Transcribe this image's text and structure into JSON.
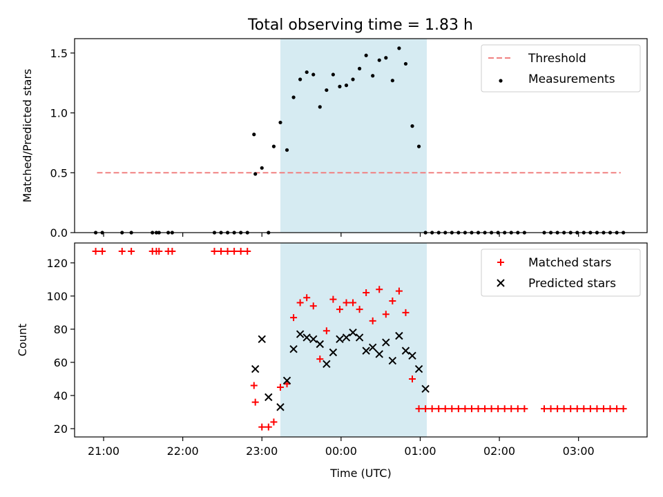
{
  "figure": {
    "title": "Total observing time = 1.83 h"
  },
  "chart_data": [
    {
      "type": "scatter",
      "panel": "top",
      "ylabel": "Matched/Predicted stars",
      "xlabel": "",
      "xlim": [
        "20:38",
        "03:52"
      ],
      "ylim": [
        0,
        1.62
      ],
      "yticks": [
        "0.0",
        "0.5",
        "1.0",
        "1.5"
      ],
      "shaded_interval": [
        "23:14",
        "01:05"
      ],
      "shade_color": "#add8e6",
      "legend_position": "top-right",
      "series": [
        {
          "name": "Threshold",
          "style": "dashed-line",
          "color": "#f08080",
          "x": [
            "20:55",
            "03:32"
          ],
          "y": [
            0.5,
            0.5
          ]
        },
        {
          "name": "Measurements",
          "style": "dot",
          "color": "#000000",
          "x": [
            "20:54",
            "20:59",
            "21:14",
            "21:21",
            "21:37",
            "21:40",
            "21:42",
            "21:49",
            "21:52",
            "22:24",
            "22:29",
            "22:34",
            "22:39",
            "22:44",
            "22:49",
            "22:54",
            "22:55",
            "23:00",
            "23:05",
            "23:09",
            "23:14",
            "23:19",
            "23:24",
            "23:29",
            "23:34",
            "23:39",
            "23:44",
            "23:49",
            "23:54",
            "23:59",
            "00:04",
            "00:09",
            "00:14",
            "00:19",
            "00:24",
            "00:29",
            "00:34",
            "00:39",
            "00:44",
            "00:49",
            "00:54",
            "00:59",
            "01:04",
            "01:09",
            "01:14",
            "01:19",
            "01:24",
            "01:29",
            "01:34",
            "01:39",
            "01:44",
            "01:49",
            "01:54",
            "01:59",
            "02:04",
            "02:09",
            "02:14",
            "02:19",
            "02:34",
            "02:39",
            "02:44",
            "02:49",
            "02:54",
            "02:59",
            "03:04",
            "03:09",
            "03:14",
            "03:19",
            "03:24",
            "03:29",
            "03:34"
          ],
          "y": [
            0,
            0,
            0,
            0,
            0,
            0,
            0,
            0,
            0,
            0,
            0,
            0,
            0,
            0,
            0,
            0.82,
            0.49,
            0.54,
            0,
            0.72,
            0.92,
            0.69,
            1.13,
            1.28,
            1.34,
            1.32,
            1.05,
            1.19,
            1.32,
            1.22,
            1.23,
            1.28,
            1.37,
            1.48,
            1.31,
            1.44,
            1.46,
            1.27,
            1.54,
            1.41,
            0.89,
            0.72,
            0,
            0,
            0,
            0,
            0,
            0,
            0,
            0,
            0,
            0,
            0,
            0,
            0,
            0,
            0,
            0,
            0,
            0,
            0,
            0,
            0,
            0,
            0,
            0,
            0,
            0,
            0,
            0,
            0
          ]
        }
      ]
    },
    {
      "type": "scatter",
      "panel": "bottom",
      "xlabel": "Time (UTC)",
      "ylabel": "Count",
      "xlim": [
        "20:38",
        "03:52"
      ],
      "ylim": [
        15,
        132
      ],
      "xticks": [
        "21:00",
        "22:00",
        "23:00",
        "00:00",
        "01:00",
        "02:00",
        "03:00"
      ],
      "yticks": [
        "20",
        "40",
        "60",
        "80",
        "100",
        "120"
      ],
      "shaded_interval": [
        "23:14",
        "01:05"
      ],
      "shade_color": "#add8e6",
      "legend_position": "top-right",
      "series": [
        {
          "name": "Matched stars",
          "marker": "plus",
          "color": "#ff0000",
          "x": [
            "20:54",
            "20:59",
            "21:14",
            "21:21",
            "21:37",
            "21:40",
            "21:42",
            "21:49",
            "21:52",
            "22:24",
            "22:29",
            "22:34",
            "22:39",
            "22:44",
            "22:49",
            "22:54",
            "22:55",
            "23:00",
            "23:05",
            "23:09",
            "23:14",
            "23:19",
            "23:24",
            "23:29",
            "23:34",
            "23:39",
            "23:44",
            "23:49",
            "23:54",
            "23:59",
            "00:04",
            "00:09",
            "00:14",
            "00:19",
            "00:24",
            "00:29",
            "00:34",
            "00:39",
            "00:44",
            "00:49",
            "00:54",
            "00:59",
            "01:04",
            "01:09",
            "01:14",
            "01:19",
            "01:24",
            "01:29",
            "01:34",
            "01:39",
            "01:44",
            "01:49",
            "01:54",
            "01:59",
            "02:04",
            "02:09",
            "02:14",
            "02:19",
            "02:34",
            "02:39",
            "02:44",
            "02:49",
            "02:54",
            "02:59",
            "03:04",
            "03:09",
            "03:14",
            "03:19",
            "03:24",
            "03:29",
            "03:34"
          ],
          "y": [
            127,
            127,
            127,
            127,
            127,
            127,
            127,
            127,
            127,
            127,
            127,
            127,
            127,
            127,
            127,
            46,
            36,
            21,
            21,
            24,
            45,
            47,
            87,
            96,
            99,
            94,
            62,
            79,
            98,
            92,
            96,
            96,
            92,
            102,
            85,
            104,
            89,
            97,
            103,
            90,
            50,
            32,
            32,
            32,
            32,
            32,
            32,
            32,
            32,
            32,
            32,
            32,
            32,
            32,
            32,
            32,
            32,
            32,
            32,
            32,
            32,
            32,
            32,
            32,
            32,
            32,
            32,
            32,
            32,
            32,
            32
          ]
        },
        {
          "name": "Predicted stars",
          "marker": "x",
          "color": "#000000",
          "x": [
            "22:55",
            "23:00",
            "23:05",
            "23:14",
            "23:19",
            "23:24",
            "23:29",
            "23:34",
            "23:39",
            "23:44",
            "23:49",
            "23:54",
            "23:59",
            "00:04",
            "00:09",
            "00:14",
            "00:19",
            "00:24",
            "00:29",
            "00:34",
            "00:39",
            "00:44",
            "00:49",
            "00:54",
            "00:59",
            "01:04"
          ],
          "y": [
            56,
            74,
            39,
            33,
            49,
            68,
            77,
            75,
            74,
            71,
            59,
            66,
            74,
            75,
            78,
            75,
            67,
            69,
            65,
            72,
            61,
            76,
            67,
            64,
            56,
            44
          ]
        }
      ]
    }
  ]
}
